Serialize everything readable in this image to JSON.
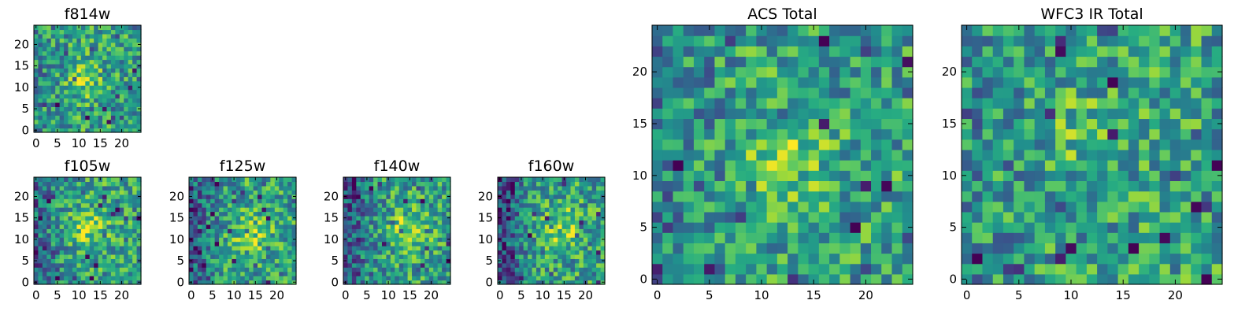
{
  "chart_data": [
    {
      "id": "f814w",
      "type": "heatmap",
      "title": "f814w",
      "size": 25,
      "seed": 814,
      "blob": [
        11,
        12,
        0.22
      ],
      "low_left": 0.1,
      "xticks": [
        0,
        5,
        10,
        15,
        20
      ],
      "yticks": [
        0,
        5,
        10,
        15,
        20
      ],
      "xlim": [
        -0.5,
        24.5
      ],
      "ylim": [
        -0.5,
        24.5
      ],
      "colormap": "viridis"
    },
    {
      "id": "f105w",
      "type": "heatmap",
      "title": "f105w",
      "size": 25,
      "seed": 105,
      "blob": [
        12,
        13,
        0.28
      ],
      "low_left": 0.28,
      "xticks": [
        0,
        5,
        10,
        15,
        20
      ],
      "yticks": [
        0,
        5,
        10,
        15,
        20
      ],
      "xlim": [
        -0.5,
        24.5
      ],
      "ylim": [
        -0.5,
        24.5
      ],
      "colormap": "viridis"
    },
    {
      "id": "f125w",
      "type": "heatmap",
      "title": "f125w",
      "size": 25,
      "seed": 125,
      "blob": [
        14,
        11,
        0.25
      ],
      "low_left": 0.32,
      "xticks": [
        0,
        5,
        10,
        15,
        20
      ],
      "yticks": [
        0,
        5,
        10,
        15,
        20
      ],
      "xlim": [
        -0.5,
        24.5
      ],
      "ylim": [
        -0.5,
        24.5
      ],
      "colormap": "viridis"
    },
    {
      "id": "f140w",
      "type": "heatmap",
      "title": "f140w",
      "size": 25,
      "seed": 140,
      "blob": [
        15,
        12,
        0.3
      ],
      "low_left": 0.38,
      "xticks": [
        0,
        5,
        10,
        15,
        20
      ],
      "yticks": [
        0,
        5,
        10,
        15,
        20
      ],
      "xlim": [
        -0.5,
        24.5
      ],
      "ylim": [
        -0.5,
        24.5
      ],
      "colormap": "viridis"
    },
    {
      "id": "f160w",
      "type": "heatmap",
      "title": "f160w",
      "size": 25,
      "seed": 160,
      "blob": [
        15,
        13,
        0.3
      ],
      "low_left": 0.45,
      "xticks": [
        0,
        5,
        10,
        15,
        20
      ],
      "yticks": [
        0,
        5,
        10,
        15,
        20
      ],
      "xlim": [
        -0.5,
        24.5
      ],
      "ylim": [
        -0.5,
        24.5
      ],
      "colormap": "viridis"
    },
    {
      "id": "acs-total",
      "type": "heatmap",
      "title": "ACS Total",
      "size": 25,
      "seed": 7,
      "blob": [
        12,
        12,
        0.22
      ],
      "low_left": 0.18,
      "xticks": [
        0,
        5,
        10,
        15,
        20
      ],
      "yticks": [
        0,
        5,
        10,
        15,
        20
      ],
      "xlim": [
        -0.5,
        24.5
      ],
      "ylim": [
        -0.5,
        24.5
      ],
      "colormap": "viridis"
    },
    {
      "id": "wfc3-ir-total",
      "type": "heatmap",
      "title": "WFC3 IR Total",
      "size": 25,
      "seed": 33,
      "blob": [
        12,
        14,
        0.12
      ],
      "low_left": 0.1,
      "xticks": [
        0,
        5,
        10,
        15,
        20
      ],
      "yticks": [
        0,
        5,
        10,
        15,
        20
      ],
      "xlim": [
        -0.5,
        24.5
      ],
      "ylim": [
        -0.5,
        24.5
      ],
      "colormap": "viridis"
    }
  ]
}
